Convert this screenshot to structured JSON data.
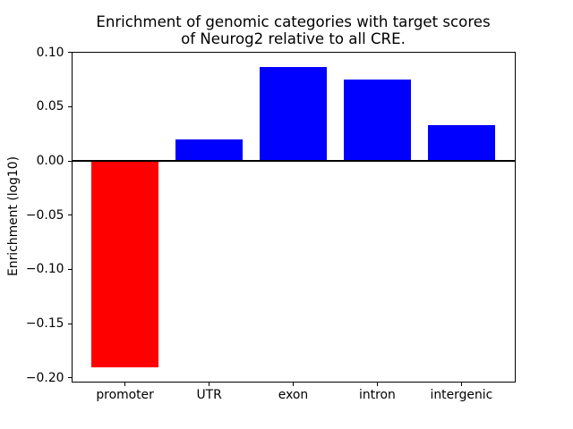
{
  "figure": {
    "background": "#ffffff"
  },
  "colors": {
    "negative_bar": "#ff0000",
    "positive_bar": "#0000ff",
    "axis": "#000000",
    "text": "#000000",
    "background": "#ffffff"
  },
  "chart_data": {
    "type": "bar",
    "title": "Enrichment of genomic categories with target scores of Neurog2 relative to all CRE.",
    "title_lines": [
      "Enrichment of genomic categories with target scores",
      "of Neurog2 relative to all CRE."
    ],
    "xlabel": "",
    "ylabel": "Enrichment (log10)",
    "categories": [
      "promoter",
      "UTR",
      "exon",
      "intron",
      "intergenic"
    ],
    "values": [
      -0.19,
      0.02,
      0.087,
      0.075,
      0.033
    ],
    "bar_colors": [
      "#ff0000",
      "#0000ff",
      "#0000ff",
      "#0000ff",
      "#0000ff"
    ],
    "bar_width_fraction": 0.8,
    "ylim": [
      -0.204,
      0.101
    ],
    "yticks": [
      0.1,
      0.05,
      0,
      -0.05,
      -0.1,
      -0.15,
      -0.2
    ],
    "ytick_labels": [
      "0.10",
      "0.05",
      "0.00",
      "−0.05",
      "−0.10",
      "−0.15",
      "−0.20"
    ],
    "grid": false,
    "legend": null,
    "zero_line": true
  }
}
